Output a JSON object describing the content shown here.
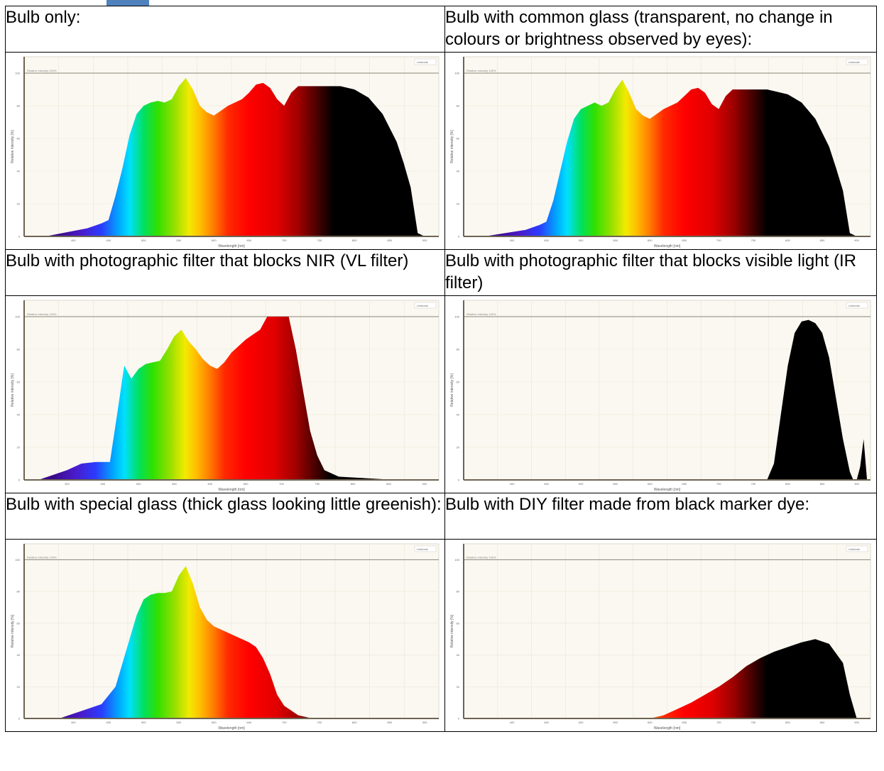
{
  "captions": [
    "Bulb only:",
    "Bulb with common glass (transparent, no change in colours or brightness observed by eyes):",
    "Bulb with photographic filter that blocks NIR (VL filter)",
    "Bulb with photographic filter that blocks visible light (IR filter)",
    "Bulb with special glass (thick glass looking little greenish):",
    "Bulb with DIY filter made from black marker dye:"
  ],
  "chart_data": [
    {
      "type": "area",
      "xlabel": "Wavelength [nm]",
      "ylabel": "Relative intensity [%]",
      "xlim": [
        330,
        920
      ],
      "ylim": [
        0,
        110
      ],
      "reference_line": "Relative intensity 100%",
      "legend": "Linktools",
      "x": [
        360,
        420,
        440,
        450,
        460,
        470,
        480,
        490,
        500,
        510,
        520,
        530,
        540,
        550,
        560,
        570,
        580,
        590,
        600,
        610,
        620,
        630,
        640,
        650,
        660,
        670,
        680,
        690,
        700,
        710,
        720,
        730,
        740,
        750,
        760,
        770,
        780,
        800,
        820,
        840,
        860,
        870,
        880,
        890,
        900
      ],
      "y": [
        0,
        5,
        8,
        10,
        25,
        42,
        62,
        75,
        80,
        82,
        83,
        82,
        84,
        92,
        97,
        90,
        80,
        76,
        74,
        77,
        80,
        82,
        84,
        88,
        93,
        94,
        91,
        84,
        80,
        88,
        92,
        92,
        92,
        92,
        92,
        92,
        92,
        90,
        85,
        75,
        58,
        45,
        30,
        2,
        0
      ]
    },
    {
      "type": "area",
      "xlabel": "Wavelength [nm]",
      "ylabel": "Relative intensity [%]",
      "xlim": [
        330,
        920
      ],
      "ylim": [
        0,
        110
      ],
      "reference_line": "Relative intensity 100%",
      "legend": "Linktools",
      "x": [
        360,
        420,
        440,
        450,
        460,
        470,
        480,
        490,
        500,
        510,
        520,
        530,
        540,
        550,
        560,
        570,
        580,
        590,
        600,
        610,
        620,
        630,
        640,
        650,
        660,
        670,
        680,
        690,
        700,
        710,
        720,
        730,
        740,
        750,
        760,
        770,
        780,
        800,
        820,
        840,
        860,
        870,
        880,
        890,
        900
      ],
      "y": [
        0,
        4,
        7,
        9,
        22,
        40,
        58,
        72,
        78,
        80,
        82,
        80,
        82,
        90,
        96,
        88,
        78,
        74,
        72,
        75,
        78,
        80,
        82,
        86,
        90,
        91,
        88,
        81,
        78,
        86,
        90,
        90,
        90,
        90,
        90,
        90,
        89,
        87,
        82,
        72,
        55,
        42,
        28,
        2,
        0
      ]
    },
    {
      "type": "area",
      "xlabel": "Wavelength [nm]",
      "ylabel": "Relative intensity [%]",
      "xlim": [
        340,
        920
      ],
      "ylim": [
        0,
        110
      ],
      "reference_line": "Relative intensity 100%",
      "legend": "Linktools",
      "x": [
        360,
        400,
        420,
        440,
        460,
        470,
        480,
        490,
        500,
        510,
        520,
        530,
        540,
        550,
        560,
        570,
        580,
        590,
        600,
        610,
        620,
        630,
        640,
        650,
        660,
        670,
        680,
        690,
        700,
        710,
        720,
        730,
        740,
        750,
        760,
        780,
        820,
        860,
        900
      ],
      "y": [
        0,
        6,
        10,
        11,
        11,
        40,
        70,
        62,
        68,
        71,
        72,
        73,
        80,
        88,
        92,
        85,
        80,
        74,
        70,
        68,
        72,
        78,
        82,
        86,
        89,
        92,
        100,
        100,
        100,
        100,
        80,
        55,
        30,
        15,
        6,
        2,
        1,
        0,
        0
      ]
    },
    {
      "type": "area",
      "xlabel": "Wavelength [nm]",
      "ylabel": "Relative intensity [%]",
      "xlim": [
        330,
        920
      ],
      "ylim": [
        0,
        110
      ],
      "reference_line": "Relative intensity 100%",
      "legend": "Linktools",
      "x": [
        770,
        780,
        790,
        800,
        810,
        820,
        830,
        840,
        850,
        860,
        870,
        880,
        890,
        895,
        900,
        905,
        910,
        915
      ],
      "y": [
        0,
        10,
        40,
        70,
        90,
        97,
        98,
        96,
        90,
        75,
        50,
        25,
        5,
        0,
        0,
        8,
        25,
        0
      ]
    },
    {
      "type": "area",
      "xlabel": "Wavelength [nm]",
      "ylabel": "Relative intensity [%]",
      "xlim": [
        330,
        920
      ],
      "ylim": [
        0,
        110
      ],
      "reference_line": "Relative intensity 100%",
      "legend": "Linktools",
      "x": [
        380,
        420,
        440,
        460,
        470,
        480,
        490,
        500,
        510,
        520,
        530,
        540,
        550,
        560,
        570,
        580,
        590,
        600,
        610,
        620,
        630,
        640,
        650,
        660,
        670,
        680,
        690,
        700,
        720,
        740,
        760
      ],
      "y": [
        0,
        6,
        9,
        20,
        35,
        50,
        65,
        75,
        78,
        79,
        79,
        80,
        90,
        96,
        85,
        70,
        62,
        58,
        56,
        54,
        52,
        50,
        48,
        45,
        38,
        28,
        15,
        8,
        2,
        0,
        0
      ]
    },
    {
      "type": "area",
      "xlabel": "Wavelength [nm]",
      "ylabel": "Relative intensity [%]",
      "xlim": [
        330,
        920
      ],
      "ylim": [
        0,
        110
      ],
      "reference_line": "Relative intensity 100%",
      "legend": "Linktools",
      "x": [
        600,
        620,
        640,
        660,
        680,
        700,
        720,
        740,
        760,
        780,
        800,
        820,
        840,
        860,
        880,
        890,
        900
      ],
      "y": [
        0,
        2,
        6,
        10,
        15,
        20,
        26,
        33,
        38,
        42,
        45,
        48,
        50,
        47,
        35,
        15,
        0
      ]
    }
  ]
}
